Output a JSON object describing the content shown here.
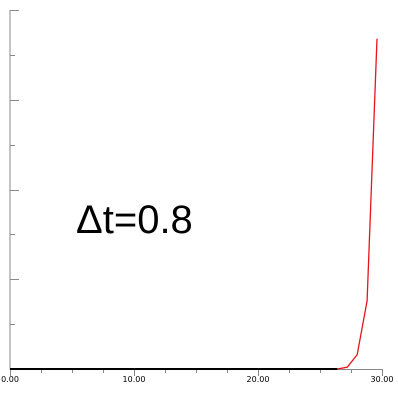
{
  "chart_data": {
    "type": "line",
    "title": "",
    "xlabel": "",
    "ylabel": "",
    "xlim": [
      0,
      30
    ],
    "ylim": [
      0,
      1
    ],
    "grid": false,
    "x_ticks": [
      {
        "value": 0,
        "label": "0.00"
      },
      {
        "value": 10,
        "label": "10.00"
      },
      {
        "value": 20,
        "label": "20.00"
      },
      {
        "value": 30,
        "label": "30.00"
      }
    ],
    "x_minor_ticks": [
      2.5,
      5,
      7.5,
      12.5,
      15,
      17.5,
      22.5,
      25,
      27.5
    ],
    "y_major_ticks": [
      0,
      0.25,
      0.5,
      0.75,
      1
    ],
    "y_minor_ticks": [
      0.125,
      0.375,
      0.625,
      0.875
    ],
    "annotation": "Δt=0.8",
    "series": [
      {
        "color": "#e8141b",
        "x": [
          26.4,
          27.2,
          28.0,
          28.8,
          29.6
        ],
        "y": [
          0.0,
          0.005,
          0.04,
          0.19,
          0.92
        ]
      },
      {
        "color": "#000000",
        "x": [
          0,
          26.4
        ],
        "y": [
          0,
          0
        ]
      }
    ]
  }
}
